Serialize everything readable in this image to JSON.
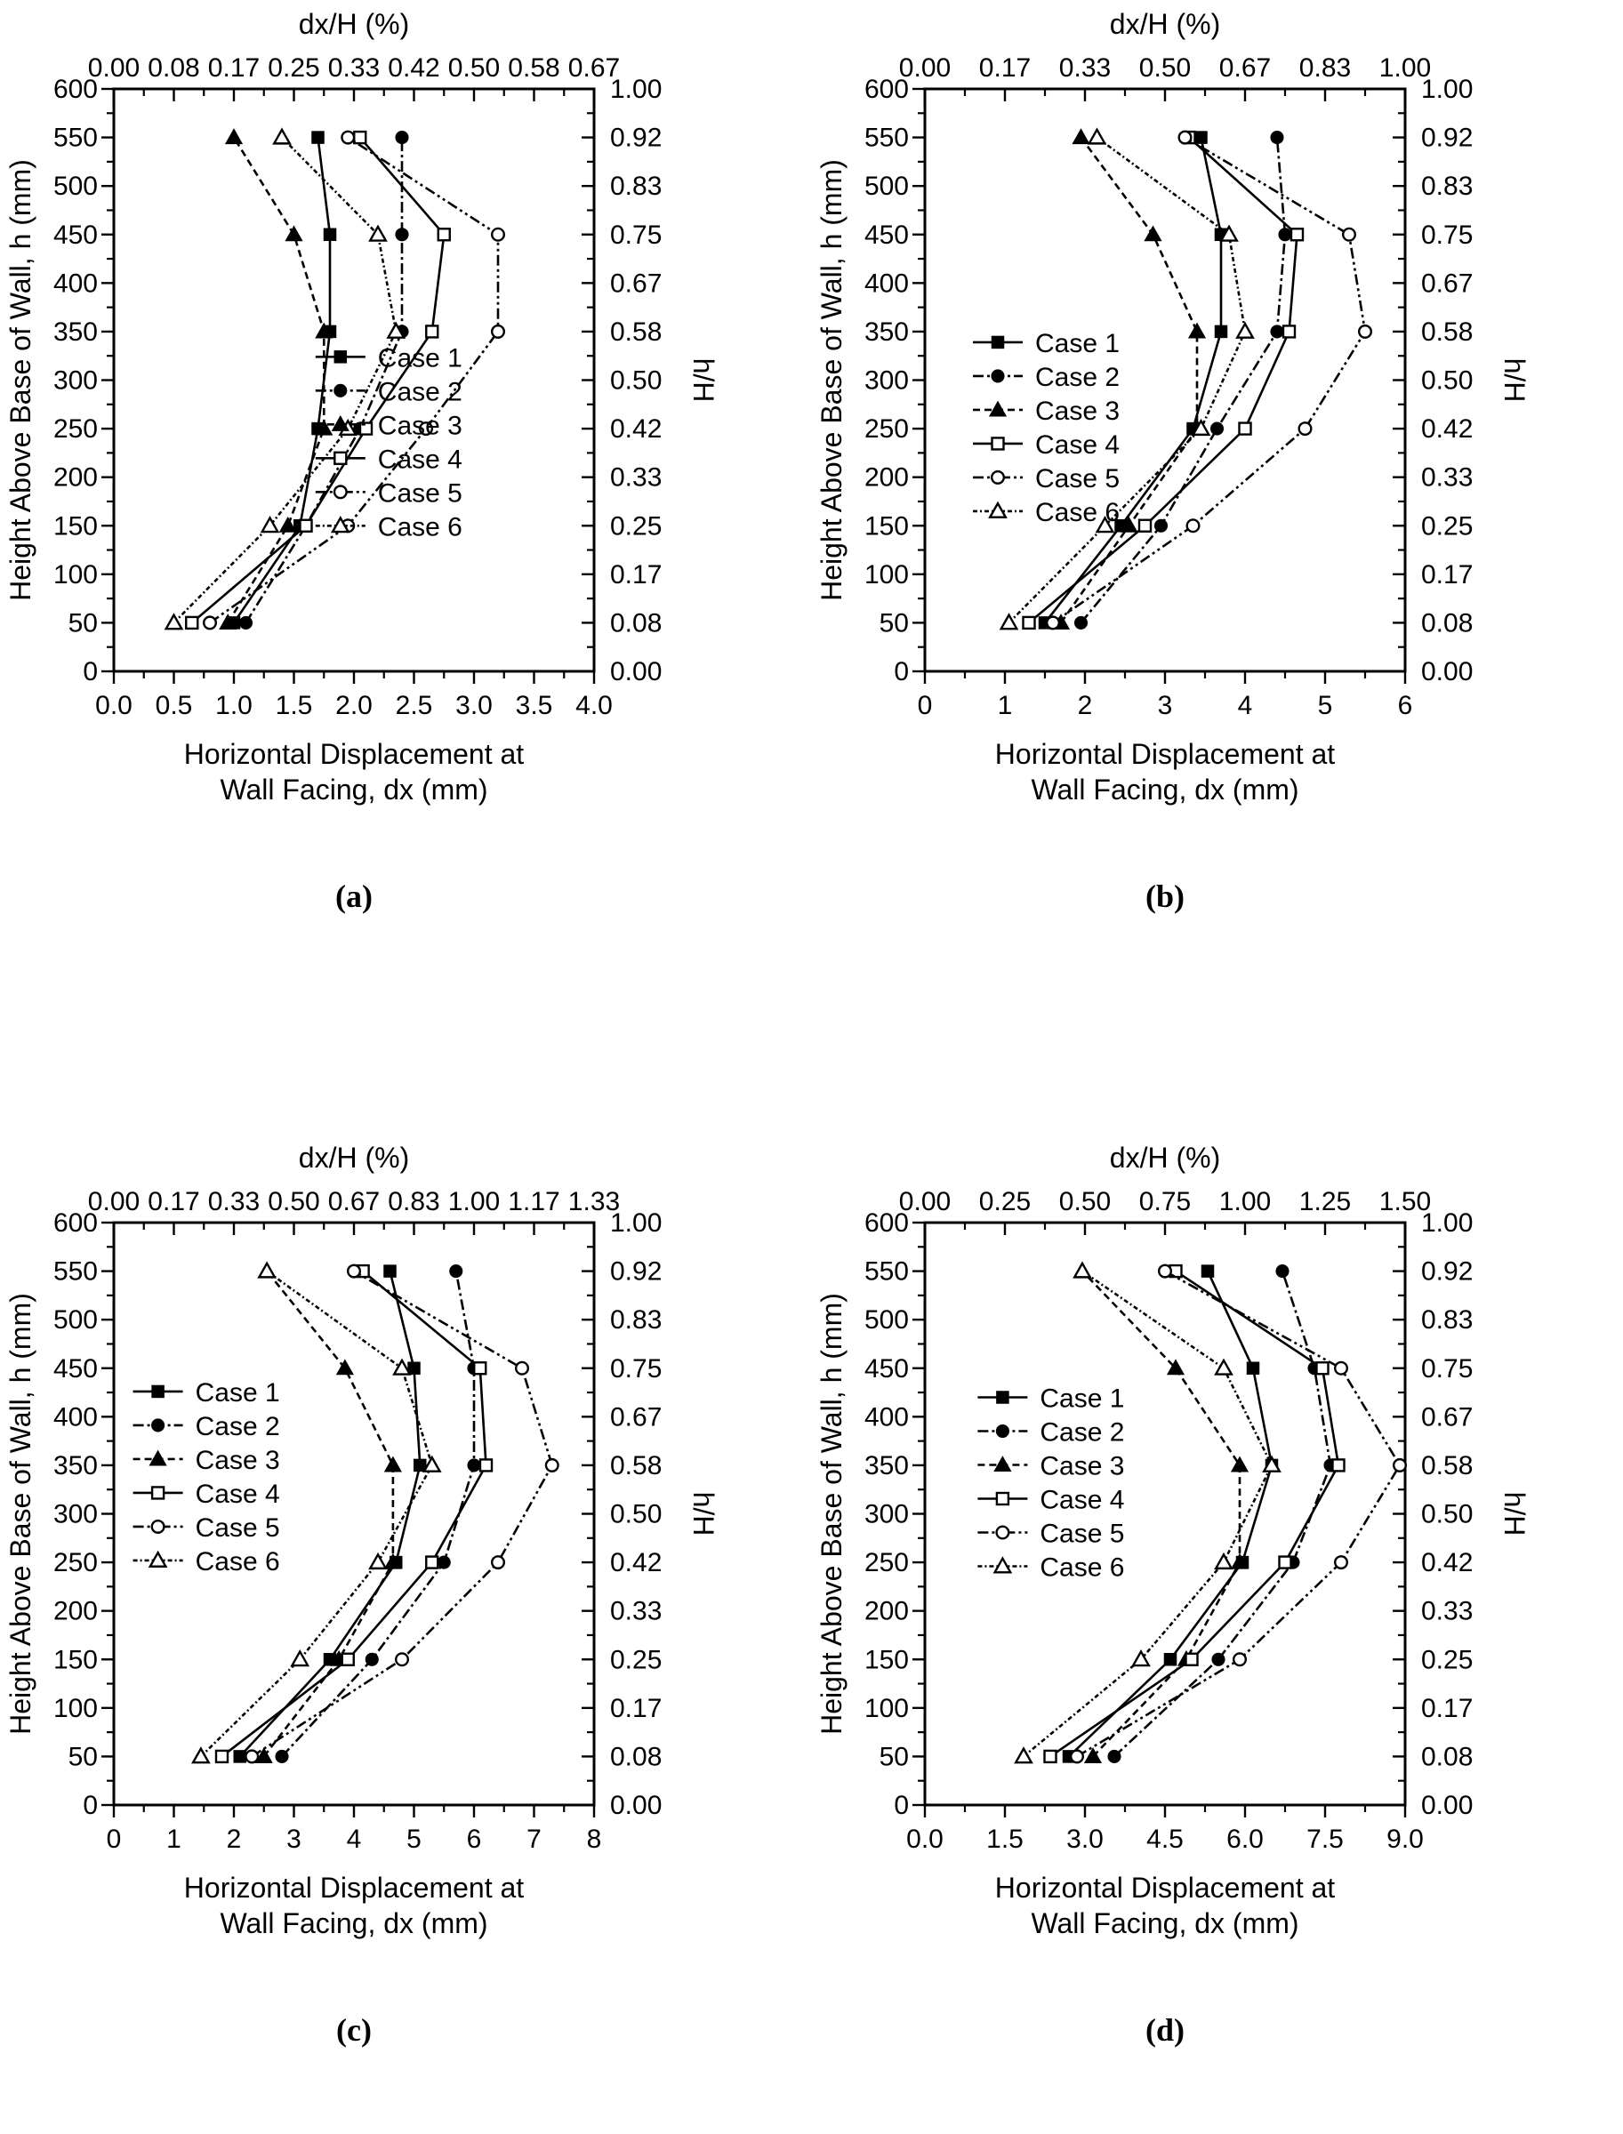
{
  "figure": {
    "top_axis_label": "dx/H (%)",
    "y_axis_label": "Height Above Base of Wall, h (mm)",
    "right_axis_label": "h/H",
    "x_axis_label_line1": "Horizontal Displacement at",
    "x_axis_label_line2": "Wall Facing, dx (mm)",
    "left_tick_labels": [
      "600",
      "550",
      "500",
      "450",
      "400",
      "350",
      "300",
      "250",
      "200",
      "150",
      "100",
      "50",
      "0"
    ],
    "right_tick_labels": [
      "1.00",
      "0.92",
      "0.83",
      "0.75",
      "0.67",
      "0.58",
      "0.50",
      "0.42",
      "0.33",
      "0.25",
      "0.17",
      "0.08",
      "0.00"
    ],
    "ink_color": "#000000",
    "paper_color": "#ffffff"
  },
  "legend": {
    "items": [
      {
        "label": "Case 1",
        "marker": "filled-square",
        "dash": "solid"
      },
      {
        "label": "Case 2",
        "marker": "filled-circle",
        "dash": "dash-dot"
      },
      {
        "label": "Case 3",
        "marker": "filled-triangle",
        "dash": "dash"
      },
      {
        "label": "Case 4",
        "marker": "open-square",
        "dash": "solid"
      },
      {
        "label": "Case 5",
        "marker": "open-circle",
        "dash": "dash-dot-dot"
      },
      {
        "label": "Case 6",
        "marker": "open-triangle",
        "dash": "short-dash-dot"
      }
    ]
  },
  "chart_data": [
    {
      "type": "line",
      "panel_letter": "(a)",
      "title": "dx/H (%)",
      "xlabel": "Horizontal Displacement at Wall Facing, dx (mm)",
      "ylabel": "Height Above Base of Wall, h (mm)",
      "x_max": 4.0,
      "ylim": [
        0,
        600
      ],
      "x_tick_labels": [
        "0.0",
        "0.5",
        "1.0",
        "1.5",
        "2.0",
        "2.5",
        "3.0",
        "3.5",
        "4.0"
      ],
      "top_tick_labels": [
        "0.00",
        "0.08",
        "0.17",
        "0.25",
        "0.33",
        "0.42",
        "0.50",
        "0.58",
        "0.67"
      ],
      "heights_mm": [
        50,
        150,
        250,
        350,
        450,
        550
      ],
      "series": [
        {
          "name": "Case 1",
          "marker": "filled-square",
          "dash": "solid",
          "values": [
            1.0,
            1.55,
            1.7,
            1.8,
            1.8,
            1.7
          ]
        },
        {
          "name": "Case 2",
          "marker": "filled-circle",
          "dash": "dash-dot",
          "values": [
            1.1,
            1.6,
            2.05,
            2.4,
            2.4,
            2.4
          ]
        },
        {
          "name": "Case 3",
          "marker": "filled-triangle",
          "dash": "dash",
          "values": [
            0.95,
            1.45,
            1.75,
            1.75,
            1.5,
            1.0
          ]
        },
        {
          "name": "Case 4",
          "marker": "open-square",
          "dash": "solid",
          "values": [
            0.65,
            1.6,
            2.1,
            2.65,
            2.75,
            2.05
          ]
        },
        {
          "name": "Case 5",
          "marker": "open-circle",
          "dash": "dash-dot-dot",
          "values": [
            0.8,
            1.95,
            2.6,
            3.2,
            3.2,
            1.95
          ]
        },
        {
          "name": "Case 6",
          "marker": "open-triangle",
          "dash": "short-dash-dot",
          "values": [
            0.5,
            1.3,
            1.95,
            2.35,
            2.2,
            1.4
          ]
        }
      ],
      "legend_pos": {
        "fx": 0.42,
        "fy": 0.46
      },
      "y_offset": 0
    },
    {
      "type": "line",
      "panel_letter": "(b)",
      "title": "dx/H (%)",
      "xlabel": "Horizontal Displacement at Wall Facing, dx (mm)",
      "ylabel": "Height Above Base of Wall, h (mm)",
      "x_max": 6.0,
      "ylim": [
        0,
        600
      ],
      "x_tick_labels": [
        "0",
        "1",
        "2",
        "3",
        "4",
        "5",
        "6"
      ],
      "top_tick_labels": [
        "0.00",
        "0.17",
        "0.33",
        "0.50",
        "0.67",
        "0.83",
        "1.00"
      ],
      "heights_mm": [
        50,
        150,
        250,
        350,
        450,
        550
      ],
      "series": [
        {
          "name": "Case 1",
          "marker": "filled-square",
          "dash": "solid",
          "values": [
            1.5,
            2.45,
            3.35,
            3.7,
            3.7,
            3.45
          ]
        },
        {
          "name": "Case 2",
          "marker": "filled-circle",
          "dash": "dash-dot",
          "values": [
            1.95,
            2.95,
            3.65,
            4.4,
            4.5,
            4.4
          ]
        },
        {
          "name": "Case 3",
          "marker": "filled-triangle",
          "dash": "dash",
          "values": [
            1.7,
            2.55,
            3.4,
            3.4,
            2.85,
            1.95
          ]
        },
        {
          "name": "Case 4",
          "marker": "open-square",
          "dash": "solid",
          "values": [
            1.3,
            2.75,
            4.0,
            4.55,
            4.65,
            3.3
          ]
        },
        {
          "name": "Case 5",
          "marker": "open-circle",
          "dash": "dash-dot-dot",
          "values": [
            1.6,
            3.35,
            4.75,
            5.5,
            5.3,
            3.25
          ]
        },
        {
          "name": "Case 6",
          "marker": "open-triangle",
          "dash": "short-dash-dot",
          "values": [
            1.05,
            2.25,
            3.45,
            4.0,
            3.8,
            2.15
          ]
        }
      ],
      "legend_pos": {
        "fx": 0.1,
        "fy": 0.435
      },
      "y_offset": 0
    },
    {
      "type": "line",
      "panel_letter": "(c)",
      "title": "dx/H (%)",
      "xlabel": "Horizontal Displacement at Wall Facing, dx (mm)",
      "ylabel": "Height Above Base of Wall, h (mm)",
      "x_max": 8.0,
      "ylim": [
        0,
        600
      ],
      "x_tick_labels": [
        "0",
        "1",
        "2",
        "3",
        "4",
        "5",
        "6",
        "7",
        "8"
      ],
      "top_tick_labels": [
        "0.00",
        "0.17",
        "0.33",
        "0.50",
        "0.67",
        "0.83",
        "1.00",
        "1.17",
        "1.33"
      ],
      "heights_mm": [
        50,
        150,
        250,
        350,
        450,
        550
      ],
      "series": [
        {
          "name": "Case 1",
          "marker": "filled-square",
          "dash": "solid",
          "values": [
            2.1,
            3.6,
            4.7,
            5.1,
            5.0,
            4.6
          ]
        },
        {
          "name": "Case 2",
          "marker": "filled-circle",
          "dash": "dash-dot",
          "values": [
            2.8,
            4.3,
            5.5,
            6.0,
            6.0,
            5.7
          ]
        },
        {
          "name": "Case 3",
          "marker": "filled-triangle",
          "dash": "dash",
          "values": [
            2.5,
            3.75,
            4.65,
            4.65,
            3.85,
            2.55
          ]
        },
        {
          "name": "Case 4",
          "marker": "open-square",
          "dash": "solid",
          "values": [
            1.8,
            3.9,
            5.3,
            6.2,
            6.1,
            4.15
          ]
        },
        {
          "name": "Case 5",
          "marker": "open-circle",
          "dash": "dash-dot-dot",
          "values": [
            2.3,
            4.8,
            6.4,
            7.3,
            6.8,
            4.0
          ]
        },
        {
          "name": "Case 6",
          "marker": "open-triangle",
          "dash": "short-dash-dot",
          "values": [
            1.45,
            3.1,
            4.4,
            5.3,
            4.8,
            2.55
          ]
        }
      ],
      "legend_pos": {
        "fx": 0.04,
        "fy": 0.29
      },
      "y_offset": 75
    },
    {
      "type": "line",
      "panel_letter": "(d)",
      "title": "dx/H (%)",
      "xlabel": "Horizontal Displacement at Wall Facing, dx (mm)",
      "ylabel": "Height Above Base of Wall, h (mm)",
      "x_max": 9.0,
      "ylim": [
        0,
        600
      ],
      "x_tick_labels": [
        "0.0",
        "1.5",
        "3.0",
        "4.5",
        "6.0",
        "7.5",
        "9.0"
      ],
      "top_tick_labels": [
        "0.00",
        "0.25",
        "0.50",
        "0.75",
        "1.00",
        "1.25",
        "1.50"
      ],
      "heights_mm": [
        50,
        150,
        250,
        350,
        450,
        550
      ],
      "series": [
        {
          "name": "Case 1",
          "marker": "filled-square",
          "dash": "solid",
          "values": [
            2.7,
            4.6,
            5.95,
            6.5,
            6.15,
            5.3
          ]
        },
        {
          "name": "Case 2",
          "marker": "filled-circle",
          "dash": "dash-dot",
          "values": [
            3.55,
            5.5,
            6.9,
            7.6,
            7.3,
            6.7
          ]
        },
        {
          "name": "Case 3",
          "marker": "filled-triangle",
          "dash": "dash",
          "values": [
            3.15,
            4.9,
            5.9,
            5.9,
            4.7,
            2.95
          ]
        },
        {
          "name": "Case 4",
          "marker": "open-square",
          "dash": "solid",
          "values": [
            2.35,
            5.0,
            6.75,
            7.75,
            7.45,
            4.7
          ]
        },
        {
          "name": "Case 5",
          "marker": "open-circle",
          "dash": "dash-dot-dot",
          "values": [
            2.85,
            5.9,
            7.8,
            8.9,
            7.8,
            4.5
          ]
        },
        {
          "name": "Case 6",
          "marker": "open-triangle",
          "dash": "short-dash-dot",
          "values": [
            1.85,
            4.05,
            5.6,
            6.5,
            5.6,
            2.95
          ]
        }
      ],
      "legend_pos": {
        "fx": 0.11,
        "fy": 0.3
      },
      "y_offset": 75
    }
  ]
}
